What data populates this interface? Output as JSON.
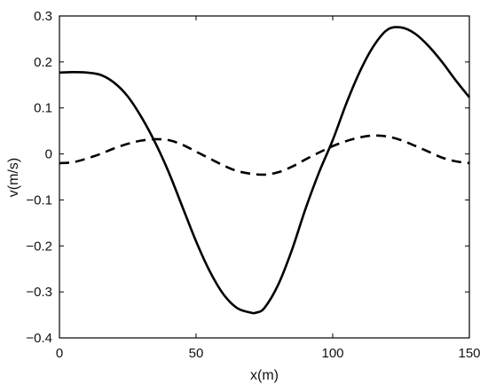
{
  "chart_data": {
    "type": "line",
    "xlabel": "x(m)",
    "ylabel": "v(m/s)",
    "xlim": [
      0,
      150
    ],
    "ylim": [
      -0.4,
      0.3
    ],
    "x_ticks": [
      0,
      50,
      100,
      150
    ],
    "x_tick_labels": [
      "0",
      "50",
      "100",
      "150"
    ],
    "y_ticks": [
      -0.4,
      -0.3,
      -0.2,
      -0.1,
      0,
      0.1,
      0.2,
      0.3
    ],
    "y_tick_labels": [
      "−0.4",
      "−0.3",
      "−0.2",
      "−0.1",
      "0",
      "0.1",
      "0.2",
      "0.3"
    ],
    "grid": false,
    "series": [
      {
        "style": "solid",
        "x": [
          0,
          5,
          10,
          15,
          20,
          25,
          30,
          35,
          40,
          45,
          50,
          55,
          60,
          65,
          70,
          72,
          75,
          80,
          85,
          90,
          95,
          100,
          105,
          110,
          115,
          120,
          125,
          130,
          135,
          140,
          145,
          150
        ],
        "y": [
          0.177,
          0.178,
          0.177,
          0.172,
          0.155,
          0.125,
          0.08,
          0.025,
          -0.04,
          -0.115,
          -0.19,
          -0.255,
          -0.305,
          -0.335,
          -0.345,
          -0.345,
          -0.335,
          -0.285,
          -0.21,
          -0.12,
          -0.04,
          0.03,
          0.11,
          0.18,
          0.235,
          0.27,
          0.275,
          0.262,
          0.235,
          0.2,
          0.16,
          0.123
        ]
      },
      {
        "style": "dashed",
        "x": [
          0,
          5,
          10,
          15,
          20,
          25,
          30,
          35,
          40,
          45,
          50,
          55,
          60,
          65,
          70,
          75,
          80,
          85,
          90,
          95,
          100,
          105,
          110,
          115,
          120,
          125,
          130,
          135,
          140,
          145,
          150
        ],
        "y": [
          -0.02,
          -0.018,
          -0.01,
          0.0,
          0.012,
          0.022,
          0.029,
          0.032,
          0.03,
          0.02,
          0.005,
          -0.01,
          -0.025,
          -0.037,
          -0.043,
          -0.045,
          -0.04,
          -0.028,
          -0.012,
          0.003,
          0.017,
          0.028,
          0.036,
          0.04,
          0.038,
          0.03,
          0.018,
          0.005,
          -0.008,
          -0.016,
          -0.02
        ]
      }
    ]
  }
}
